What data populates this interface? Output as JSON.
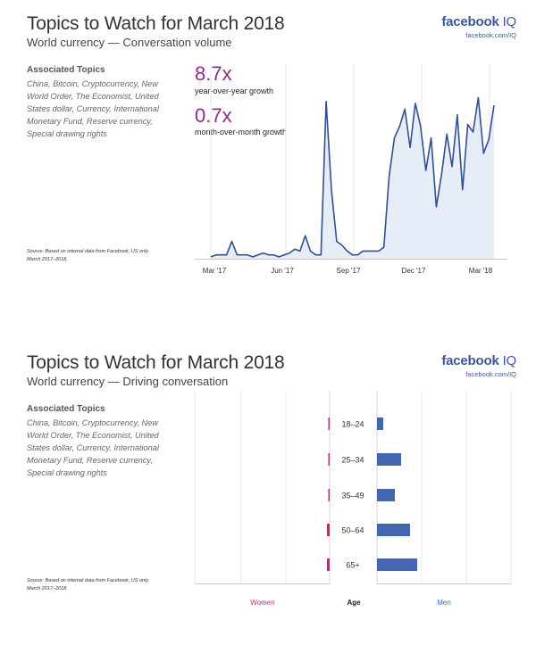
{
  "colors": {
    "brand": "#3b5998",
    "accent": "#8e2c8a",
    "line": "#31508f",
    "area": "#e7edf7",
    "women": "#b0327e",
    "men": "#4466b0"
  },
  "brand": {
    "name": "facebook",
    "iq": "IQ",
    "url": "facebook.com/IQ"
  },
  "panels": [
    {
      "title": "Topics to Watch for March 2018",
      "subtitle": "World currency — Conversation volume",
      "assoc_heading": "Associated Topics",
      "assoc_topics": "China, Bitcoin, Cryptocurrency, New World Order, The Economist, United States dollar, Currency, International Monetary Fund, Reserve currency, Special drawing rights",
      "source": "Source: Based on internal data from Facebook, US only. March 2017–2018.",
      "stats": [
        {
          "value": "8.7x",
          "label": "year-over-year growth"
        },
        {
          "value": "0.7x",
          "label": "month-over-month growth"
        }
      ]
    },
    {
      "title": "Topics to Watch for March 2018",
      "subtitle": "World currency — Driving conversation",
      "assoc_heading": "Associated Topics",
      "assoc_topics": "China, Bitcoin, Cryptocurrency, New World Order, The Economist, United States dollar, Currency, International Monetary Fund, Reserve currency, Special drawing rights",
      "source": "Source: Based on internal data from Facebook, US only. March 2017–2018."
    }
  ],
  "chart_data": [
    {
      "type": "area",
      "x_ticks": [
        "Mar '17",
        "Jun '17",
        "Sep '17",
        "Dec '17",
        "Mar '18"
      ],
      "ylim": [
        0,
        100
      ],
      "grid": "vertical",
      "values": [
        1,
        2,
        2,
        2,
        9,
        2,
        2,
        2,
        1,
        2,
        3,
        2,
        2,
        1,
        2,
        3,
        5,
        4,
        12,
        4,
        2,
        2,
        82,
        36,
        9,
        7,
        4,
        2,
        2,
        4,
        4,
        4,
        4,
        6,
        43,
        63,
        69,
        78,
        58,
        81,
        69,
        46,
        63,
        27,
        44,
        65,
        48,
        75,
        36,
        70,
        66,
        84,
        55,
        62,
        80
      ]
    },
    {
      "type": "bar",
      "orientation": "horizontal-diverging",
      "categories": [
        "18–24",
        "25–34",
        "35–49",
        "50–64",
        "65+"
      ],
      "series": [
        {
          "name": "Women",
          "values": [
            1,
            1,
            1,
            2,
            2
          ]
        },
        {
          "name": "Men",
          "values": [
            7,
            27,
            20,
            37,
            45
          ]
        }
      ],
      "center_label": "Age",
      "grid": "vertical"
    }
  ]
}
